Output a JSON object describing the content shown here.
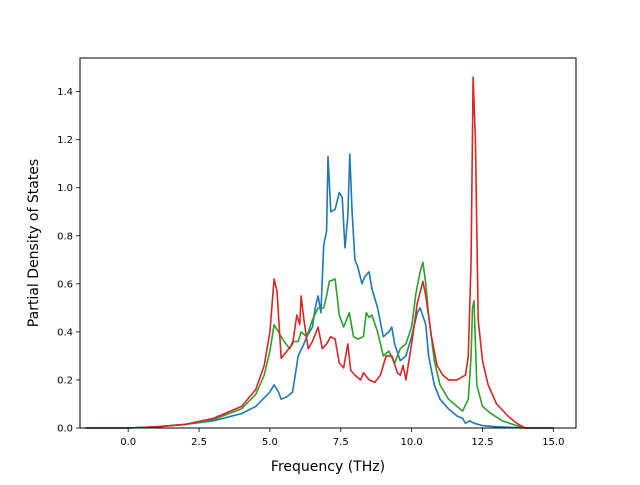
{
  "chart_data": {
    "type": "line",
    "title": "",
    "xlabel": "Frequency (THz)",
    "ylabel": "Partial Density of States",
    "xlim": [
      -1.7,
      15.8
    ],
    "ylim": [
      0.0,
      1.54
    ],
    "xticks": [
      0.0,
      2.5,
      5.0,
      7.5,
      10.0,
      12.5,
      15.0
    ],
    "yticks": [
      0.0,
      0.2,
      0.4,
      0.6,
      0.8,
      1.0,
      1.2,
      1.4
    ],
    "xtick_labels": [
      "0.0",
      "2.5",
      "5.0",
      "7.5",
      "10.0",
      "12.5",
      "15.0"
    ],
    "ytick_labels": [
      "0.0",
      "0.2",
      "0.4",
      "0.6",
      "0.8",
      "1.0",
      "1.2",
      "1.4"
    ],
    "grid": false,
    "legend": "none",
    "series": [
      {
        "color": "#1f77b4",
        "points": [
          [
            -1.5,
            0.0
          ],
          [
            0.0,
            0.0
          ],
          [
            1.0,
            0.005
          ],
          [
            2.0,
            0.015
          ],
          [
            3.0,
            0.03
          ],
          [
            4.0,
            0.06
          ],
          [
            4.5,
            0.09
          ],
          [
            5.0,
            0.15
          ],
          [
            5.15,
            0.18
          ],
          [
            5.3,
            0.15
          ],
          [
            5.4,
            0.12
          ],
          [
            5.6,
            0.13
          ],
          [
            5.8,
            0.15
          ],
          [
            6.0,
            0.3
          ],
          [
            6.2,
            0.35
          ],
          [
            6.3,
            0.38
          ],
          [
            6.5,
            0.42
          ],
          [
            6.6,
            0.5
          ],
          [
            6.7,
            0.55
          ],
          [
            6.8,
            0.48
          ],
          [
            6.9,
            0.76
          ],
          [
            7.0,
            0.82
          ],
          [
            7.05,
            1.13
          ],
          [
            7.15,
            0.9
          ],
          [
            7.3,
            0.91
          ],
          [
            7.45,
            0.98
          ],
          [
            7.55,
            0.96
          ],
          [
            7.65,
            0.75
          ],
          [
            7.75,
            0.88
          ],
          [
            7.82,
            1.14
          ],
          [
            7.9,
            0.9
          ],
          [
            8.0,
            0.7
          ],
          [
            8.1,
            0.67
          ],
          [
            8.25,
            0.6
          ],
          [
            8.35,
            0.63
          ],
          [
            8.5,
            0.65
          ],
          [
            8.6,
            0.58
          ],
          [
            8.8,
            0.5
          ],
          [
            9.0,
            0.38
          ],
          [
            9.2,
            0.4
          ],
          [
            9.3,
            0.42
          ],
          [
            9.4,
            0.35
          ],
          [
            9.6,
            0.28
          ],
          [
            9.8,
            0.3
          ],
          [
            10.0,
            0.38
          ],
          [
            10.2,
            0.48
          ],
          [
            10.3,
            0.5
          ],
          [
            10.5,
            0.43
          ],
          [
            10.6,
            0.3
          ],
          [
            10.8,
            0.18
          ],
          [
            11.0,
            0.12
          ],
          [
            11.3,
            0.08
          ],
          [
            11.6,
            0.05
          ],
          [
            11.8,
            0.04
          ],
          [
            11.9,
            0.02
          ],
          [
            12.05,
            0.03
          ],
          [
            12.2,
            0.02
          ],
          [
            12.5,
            0.01
          ],
          [
            13.0,
            0.005
          ],
          [
            14.0,
            0.0
          ],
          [
            15.0,
            0.0
          ]
        ]
      },
      {
        "color": "#2ca02c",
        "points": [
          [
            -1.5,
            0.0
          ],
          [
            0.0,
            0.0
          ],
          [
            1.0,
            0.005
          ],
          [
            2.0,
            0.015
          ],
          [
            3.0,
            0.035
          ],
          [
            4.0,
            0.08
          ],
          [
            4.5,
            0.14
          ],
          [
            4.8,
            0.22
          ],
          [
            5.0,
            0.32
          ],
          [
            5.15,
            0.43
          ],
          [
            5.3,
            0.4
          ],
          [
            5.5,
            0.36
          ],
          [
            5.7,
            0.33
          ],
          [
            5.8,
            0.36
          ],
          [
            6.0,
            0.36
          ],
          [
            6.1,
            0.4
          ],
          [
            6.3,
            0.38
          ],
          [
            6.5,
            0.45
          ],
          [
            6.7,
            0.5
          ],
          [
            6.9,
            0.5
          ],
          [
            7.0,
            0.55
          ],
          [
            7.1,
            0.61
          ],
          [
            7.3,
            0.62
          ],
          [
            7.45,
            0.47
          ],
          [
            7.6,
            0.42
          ],
          [
            7.8,
            0.48
          ],
          [
            7.95,
            0.38
          ],
          [
            8.1,
            0.37
          ],
          [
            8.3,
            0.38
          ],
          [
            8.4,
            0.48
          ],
          [
            8.5,
            0.46
          ],
          [
            8.6,
            0.47
          ],
          [
            8.8,
            0.4
          ],
          [
            9.0,
            0.3
          ],
          [
            9.2,
            0.32
          ],
          [
            9.4,
            0.27
          ],
          [
            9.6,
            0.33
          ],
          [
            9.8,
            0.35
          ],
          [
            10.0,
            0.42
          ],
          [
            10.15,
            0.56
          ],
          [
            10.3,
            0.65
          ],
          [
            10.4,
            0.69
          ],
          [
            10.5,
            0.6
          ],
          [
            10.6,
            0.47
          ],
          [
            10.8,
            0.28
          ],
          [
            11.0,
            0.18
          ],
          [
            11.3,
            0.12
          ],
          [
            11.6,
            0.09
          ],
          [
            11.8,
            0.07
          ],
          [
            12.0,
            0.12
          ],
          [
            12.1,
            0.3
          ],
          [
            12.15,
            0.5
          ],
          [
            12.2,
            0.53
          ],
          [
            12.3,
            0.18
          ],
          [
            12.5,
            0.09
          ],
          [
            12.8,
            0.06
          ],
          [
            13.2,
            0.03
          ],
          [
            13.7,
            0.01
          ],
          [
            14.0,
            0.0
          ],
          [
            15.0,
            0.0
          ]
        ]
      },
      {
        "color": "#d62728",
        "points": [
          [
            -1.5,
            0.0
          ],
          [
            0.0,
            0.0
          ],
          [
            1.0,
            0.005
          ],
          [
            2.0,
            0.015
          ],
          [
            3.0,
            0.04
          ],
          [
            4.0,
            0.09
          ],
          [
            4.5,
            0.16
          ],
          [
            4.8,
            0.26
          ],
          [
            5.0,
            0.4
          ],
          [
            5.15,
            0.62
          ],
          [
            5.25,
            0.57
          ],
          [
            5.4,
            0.29
          ],
          [
            5.6,
            0.32
          ],
          [
            5.8,
            0.35
          ],
          [
            5.95,
            0.47
          ],
          [
            6.05,
            0.43
          ],
          [
            6.1,
            0.55
          ],
          [
            6.2,
            0.45
          ],
          [
            6.35,
            0.33
          ],
          [
            6.5,
            0.36
          ],
          [
            6.7,
            0.42
          ],
          [
            6.85,
            0.33
          ],
          [
            7.0,
            0.35
          ],
          [
            7.15,
            0.38
          ],
          [
            7.3,
            0.37
          ],
          [
            7.45,
            0.27
          ],
          [
            7.6,
            0.25
          ],
          [
            7.75,
            0.35
          ],
          [
            7.85,
            0.24
          ],
          [
            8.0,
            0.22
          ],
          [
            8.2,
            0.2
          ],
          [
            8.3,
            0.23
          ],
          [
            8.5,
            0.2
          ],
          [
            8.7,
            0.19
          ],
          [
            8.9,
            0.22
          ],
          [
            9.1,
            0.3
          ],
          [
            9.3,
            0.3
          ],
          [
            9.5,
            0.23
          ],
          [
            9.6,
            0.22
          ],
          [
            9.7,
            0.26
          ],
          [
            9.8,
            0.2
          ],
          [
            10.0,
            0.35
          ],
          [
            10.2,
            0.52
          ],
          [
            10.4,
            0.61
          ],
          [
            10.5,
            0.55
          ],
          [
            10.7,
            0.38
          ],
          [
            10.9,
            0.26
          ],
          [
            11.1,
            0.22
          ],
          [
            11.3,
            0.2
          ],
          [
            11.6,
            0.2
          ],
          [
            11.9,
            0.22
          ],
          [
            12.0,
            0.3
          ],
          [
            12.1,
            0.7
          ],
          [
            12.17,
            1.46
          ],
          [
            12.25,
            1.2
          ],
          [
            12.35,
            0.45
          ],
          [
            12.5,
            0.28
          ],
          [
            12.7,
            0.18
          ],
          [
            13.0,
            0.1
          ],
          [
            13.4,
            0.05
          ],
          [
            13.7,
            0.02
          ],
          [
            14.0,
            0.0
          ],
          [
            15.0,
            0.0
          ]
        ]
      }
    ]
  }
}
